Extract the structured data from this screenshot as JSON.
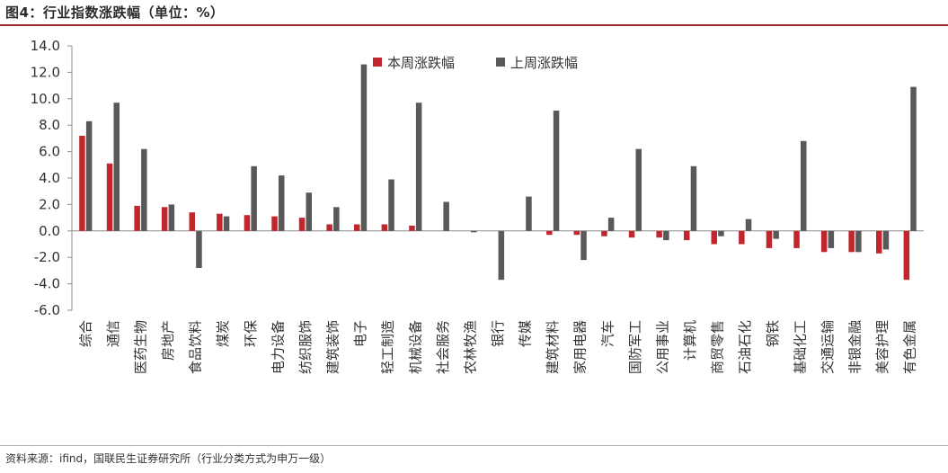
{
  "header": {
    "title": "图4：行业指数涨跌幅（单位：%）"
  },
  "footer": {
    "source": "资料来源：ifind，国联民生证券研究所（行业分类方式为申万一级）"
  },
  "colors": {
    "this_week": "#c0262b",
    "last_week": "#595959",
    "title_rule": "#9e2b25"
  },
  "chart_data": {
    "type": "bar",
    "categories": [
      "综合",
      "通信",
      "医药生物",
      "房地产",
      "食品饮料",
      "煤炭",
      "环保",
      "电力设备",
      "纺织服饰",
      "建筑装饰",
      "电子",
      "轻工制造",
      "机械设备",
      "社会服务",
      "农林牧渔",
      "银行",
      "传媒",
      "建筑材料",
      "家用电器",
      "汽车",
      "国防军工",
      "公用事业",
      "计算机",
      "商贸零售",
      "石油石化",
      "钢铁",
      "基础化工",
      "交通运输",
      "非银金融",
      "美容护理",
      "有色金属"
    ],
    "series": [
      {
        "name": "本周涨跌幅",
        "color": "#c0262b",
        "values": [
          7.2,
          5.1,
          1.9,
          1.8,
          1.4,
          1.3,
          1.2,
          1.1,
          1.0,
          0.5,
          0.5,
          0.5,
          0.4,
          0.0,
          0.0,
          0.0,
          0.0,
          -0.3,
          -0.3,
          -0.4,
          -0.5,
          -0.5,
          -0.7,
          -1.0,
          -1.0,
          -1.3,
          -1.3,
          -1.6,
          -1.6,
          -1.7,
          -3.7
        ]
      },
      {
        "name": "上周涨跌幅",
        "color": "#595959",
        "values": [
          8.3,
          9.7,
          6.2,
          2.0,
          -2.8,
          1.1,
          4.9,
          4.2,
          2.9,
          1.8,
          12.6,
          3.9,
          9.7,
          2.2,
          -0.1,
          -3.7,
          2.6,
          9.1,
          -2.2,
          1.0,
          6.2,
          -0.7,
          4.9,
          -0.4,
          0.9,
          -0.6,
          6.8,
          -1.3,
          -1.6,
          -1.4,
          10.9
        ]
      }
    ],
    "yticks": [
      "14.0",
      "12.0",
      "10.0",
      "8.0",
      "6.0",
      "4.0",
      "2.0",
      "0.0",
      "-2.0",
      "-4.0",
      "-6.0"
    ],
    "ylim": [
      -6,
      14
    ],
    "xlabel": "",
    "ylabel": "",
    "grid": false,
    "legend_position": "top-center"
  }
}
